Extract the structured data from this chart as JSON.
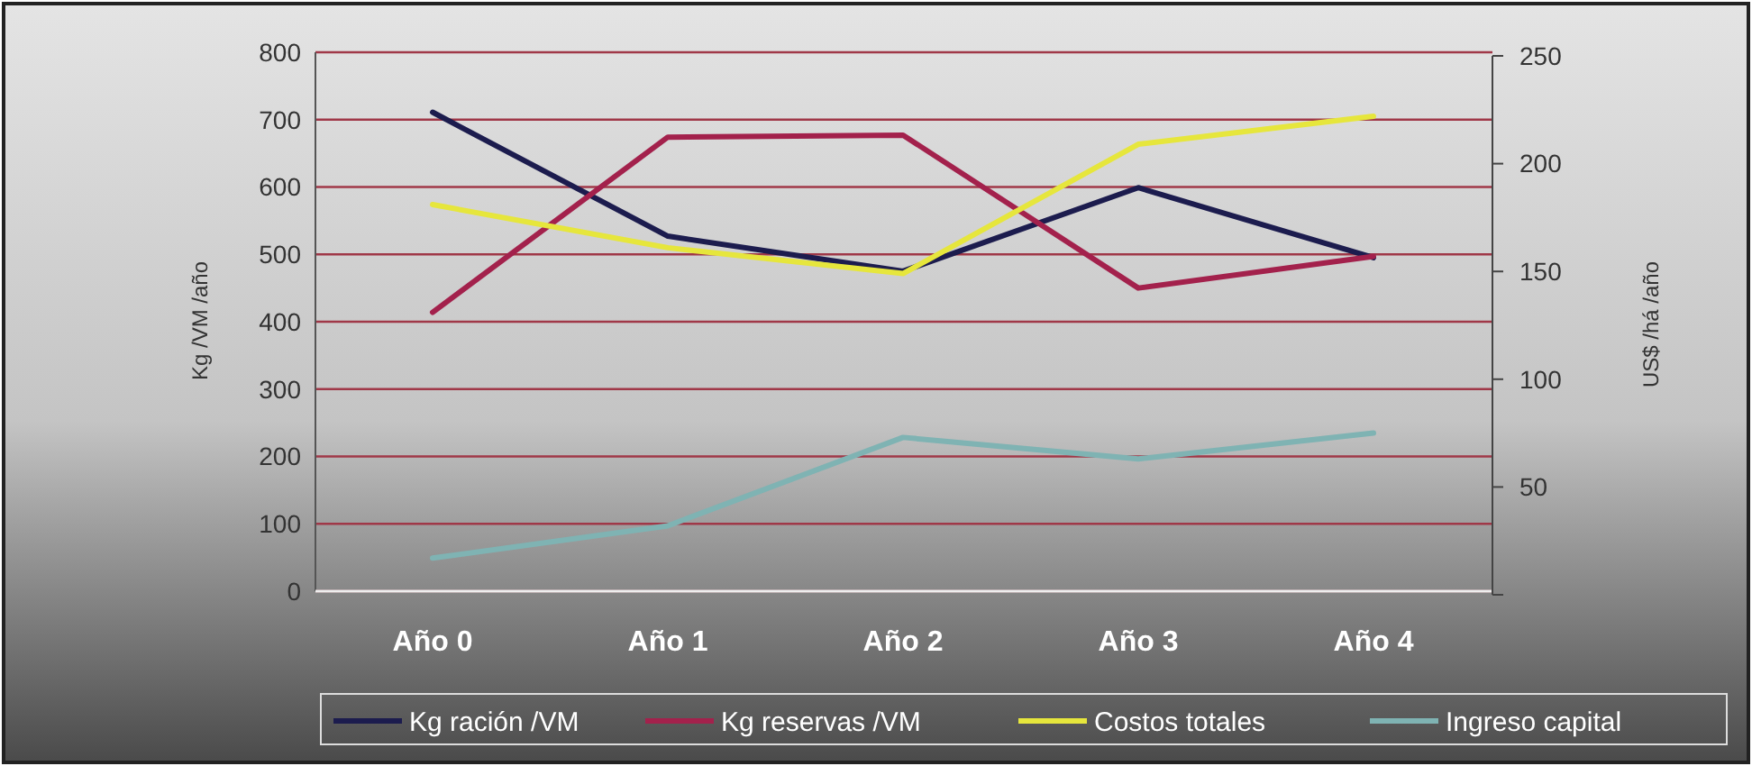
{
  "chart_data": {
    "type": "line",
    "ylabel": "Kg /VM /año",
    "y2label": "US$ /há /año",
    "categories": [
      "Año 0",
      "Año 1",
      "Año 2",
      "Año 3",
      "Año 4"
    ],
    "series": [
      {
        "name": "Kg ración /VM",
        "color": "#1c1c4e",
        "values": [
          711,
          527,
          475,
          599,
          495
        ]
      },
      {
        "name": "Kg reservas /VM",
        "color": "#a3214c",
        "values": [
          414,
          674,
          677,
          450,
          497
        ]
      },
      {
        "name": "Costos totales",
        "color": "#e6e63c",
        "axis": "y2",
        "values": [
          181,
          161,
          149,
          209,
          222
        ]
      },
      {
        "name": "Ingreso capital",
        "color": "#7fb3b3",
        "axis": "y2",
        "values": [
          17,
          32,
          73,
          63,
          75
        ]
      }
    ],
    "ylim": [
      0,
      800
    ],
    "yticks": [
      0,
      100,
      200,
      300,
      400,
      500,
      600,
      700,
      800
    ],
    "y2lim": [
      0,
      250
    ],
    "y2ticks": [
      {
        "value": 0,
        "label": null
      },
      50,
      100,
      150,
      200,
      250
    ],
    "grid": "y",
    "legend": "bottom",
    "marker": "none",
    "line_style": "solid"
  }
}
